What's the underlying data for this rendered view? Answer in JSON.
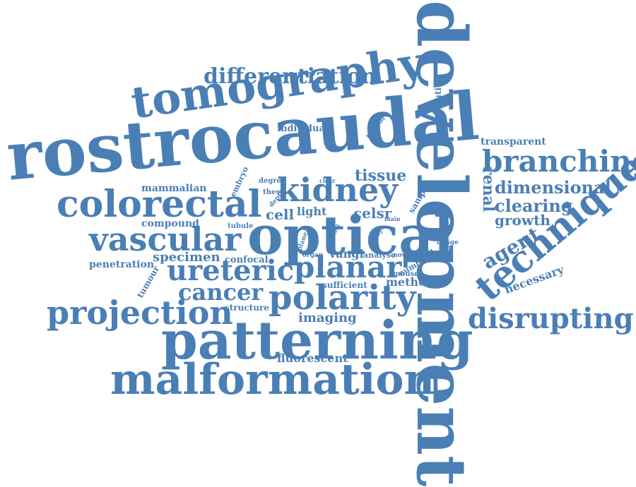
{
  "style": {
    "text_color": "#4a7fb5",
    "background": "#ffffff"
  },
  "words": [
    "development",
    "rostrocaudal",
    "tomography",
    "optical",
    "patterning",
    "malformation",
    "colorectal",
    "kidney",
    "technique",
    "ureteric",
    "planar",
    "polarity",
    "vascular",
    "projection",
    "branching",
    "differentiation",
    "disrupting",
    "cancer",
    "dimensional",
    "clearing",
    "growth",
    "agent",
    "renal",
    "tissue",
    "transparent",
    "specimen",
    "mammalian",
    "necessary",
    "penetration",
    "method",
    "imaging",
    "fluorescent",
    "individual",
    "cell",
    "light",
    "celsr",
    "compound",
    "vangl",
    "structure",
    "confocal",
    "sufficient",
    "resolution",
    "network",
    "embryo",
    "degree",
    "thesis",
    "depth",
    "clear",
    "sample",
    "tubule",
    "tumour",
    "plane",
    "organ",
    "analyse",
    "novel",
    "model",
    "image",
    "number",
    "mouse",
    "main",
    "study",
    "test"
  ]
}
